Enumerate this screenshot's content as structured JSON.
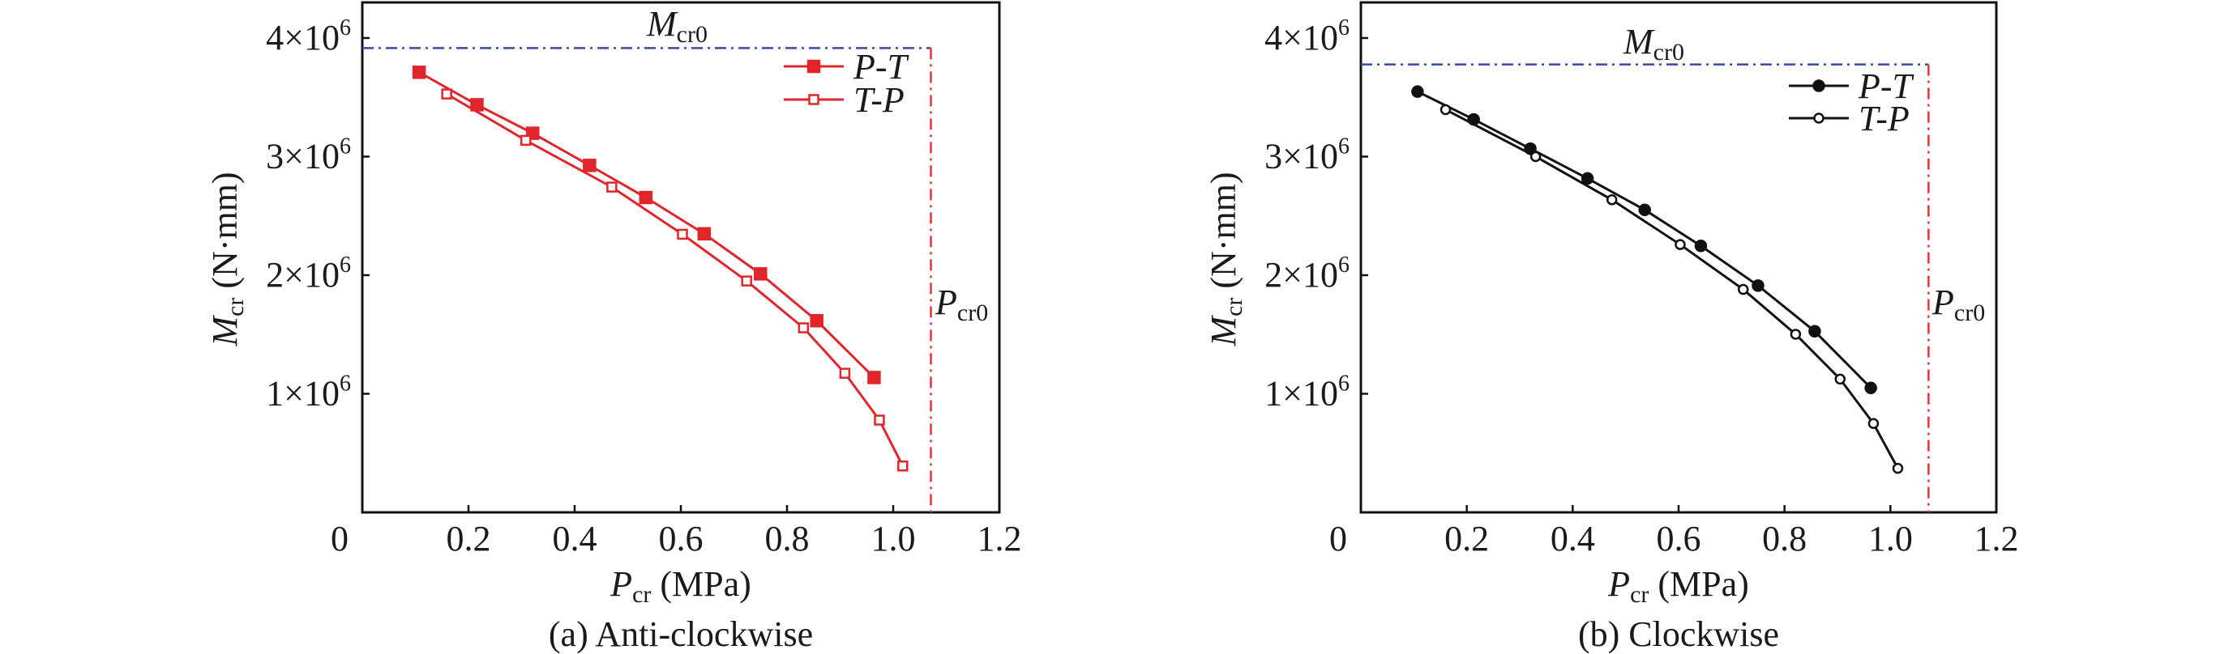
{
  "chart_data": [
    {
      "type": "line",
      "caption": "(a) Anti-clockwise",
      "xlabel": {
        "symbol": "P",
        "sub": "cr",
        "unit": " (MPa)"
      },
      "ylabel": {
        "symbol": "M",
        "sub": "cr",
        "unit": " (N·mm)"
      },
      "xlim": [
        0,
        1.2
      ],
      "ylim": [
        0,
        4300000
      ],
      "x_ticks": [
        0,
        0.2,
        0.4,
        0.6,
        0.8,
        1.0,
        1.2
      ],
      "x_tick_labels": [
        "0",
        "0.2",
        "0.4",
        "0.6",
        "0.8",
        "1.0",
        "1.2"
      ],
      "y_ticks": [
        1000000,
        2000000,
        3000000,
        4000000
      ],
      "y_tick_labels": [
        {
          "base": "1×10",
          "exp": "6"
        },
        {
          "base": "2×10",
          "exp": "6"
        },
        {
          "base": "3×10",
          "exp": "6"
        },
        {
          "base": "4×10",
          "exp": "6"
        }
      ],
      "grid": false,
      "legend_position": "top-right",
      "reference_lines": {
        "Mcr0": {
          "symbol": "M",
          "sub": "cr0",
          "value": 3915000,
          "color": "#3a48a8"
        },
        "Pcr0": {
          "symbol": "P",
          "sub": "cr0",
          "value": 1.071,
          "color": "#e8313a"
        }
      },
      "series": [
        {
          "name": "P-T",
          "marker": "filled-square",
          "color": "#e0252b",
          "x": [
            0.107,
            0.216,
            0.321,
            0.428,
            0.534,
            0.644,
            0.75,
            0.856,
            0.964
          ],
          "y": [
            3711000,
            3437000,
            3197000,
            2926000,
            2655000,
            2349000,
            2011000,
            1616000,
            1137000
          ]
        },
        {
          "name": "T-P",
          "marker": "open-square",
          "color": "#e0252b",
          "x": [
            0.159,
            0.308,
            0.47,
            0.603,
            0.724,
            0.831,
            0.909,
            0.974,
            1.018
          ],
          "y": [
            3528000,
            3137000,
            2743000,
            2345000,
            1951000,
            1556000,
            1173000,
            778000,
            391000
          ]
        }
      ]
    },
    {
      "type": "line",
      "caption": "(b) Clockwise",
      "xlabel": {
        "symbol": "P",
        "sub": "cr",
        "unit": " (MPa)"
      },
      "ylabel": {
        "symbol": "M",
        "sub": "cr",
        "unit": " (N·mm)"
      },
      "xlim": [
        0,
        1.2
      ],
      "ylim": [
        0,
        4300000
      ],
      "x_ticks": [
        0,
        0.2,
        0.4,
        0.6,
        0.8,
        1.0,
        1.2
      ],
      "x_tick_labels": [
        "0",
        "0.2",
        "0.4",
        "0.6",
        "0.8",
        "1.0",
        "1.2"
      ],
      "y_ticks": [
        1000000,
        2000000,
        3000000,
        4000000
      ],
      "y_tick_labels": [
        {
          "base": "1×10",
          "exp": "6"
        },
        {
          "base": "2×10",
          "exp": "6"
        },
        {
          "base": "3×10",
          "exp": "6"
        },
        {
          "base": "4×10",
          "exp": "6"
        }
      ],
      "grid": false,
      "legend_position": "top-right",
      "reference_lines": {
        "Mcr0": {
          "symbol": "M",
          "sub": "cr0",
          "value": 3777000,
          "color": "#3a48a8"
        },
        "Pcr0": {
          "symbol": "P",
          "sub": "cr0",
          "value": 1.072,
          "color": "#e8313a"
        }
      },
      "series": [
        {
          "name": "P-T",
          "marker": "filled-circle",
          "color": "#111111",
          "x": [
            0.107,
            0.213,
            0.32,
            0.428,
            0.536,
            0.642,
            0.75,
            0.857,
            0.963
          ],
          "y": [
            3548000,
            3314000,
            3067000,
            2816000,
            2551000,
            2247000,
            1912000,
            1527000,
            1049000
          ]
        },
        {
          "name": "T-P",
          "marker": "open-circle",
          "color": "#111111",
          "x": [
            0.16,
            0.33,
            0.474,
            0.603,
            0.722,
            0.821,
            0.905,
            0.968,
            1.014
          ],
          "y": [
            3396000,
            3000000,
            2636000,
            2258000,
            1880000,
            1502000,
            1124000,
            749000,
            371000
          ]
        }
      ]
    }
  ]
}
